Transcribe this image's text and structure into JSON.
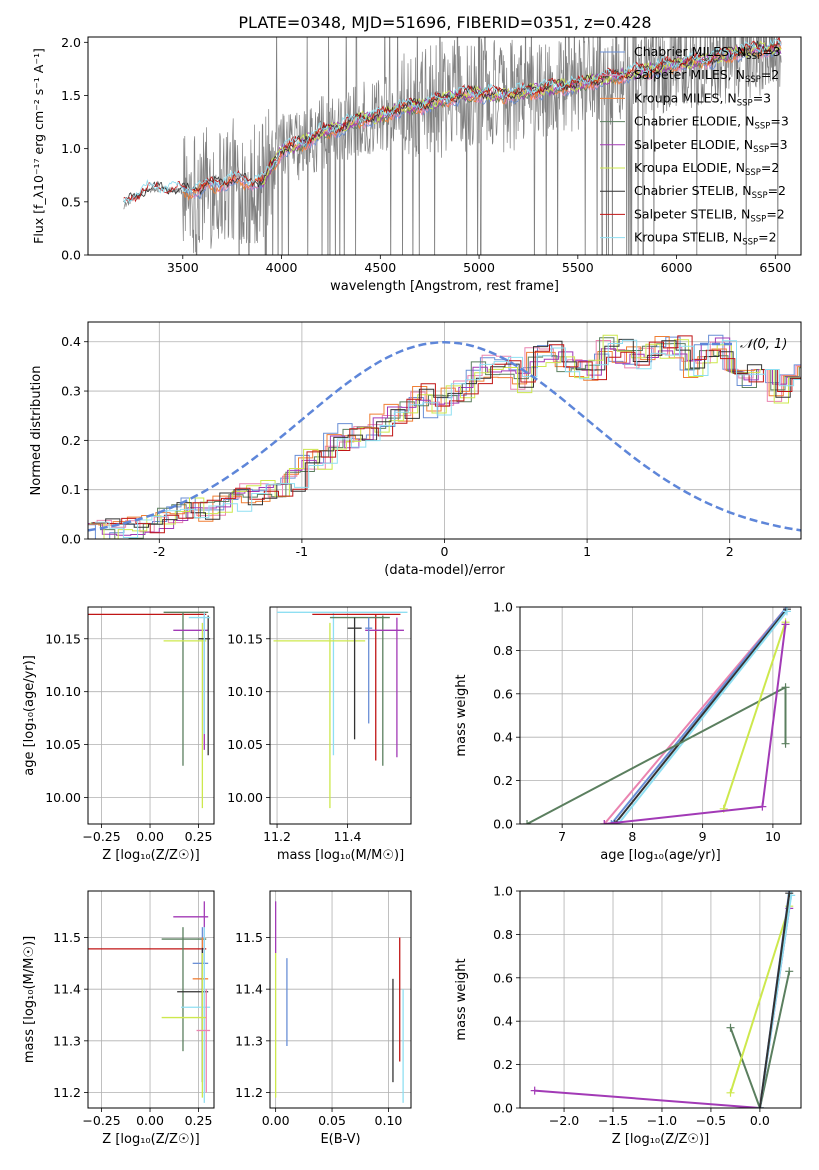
{
  "figure_title": "PLATE=0348, MJD=51696, FIBERID=0351, z=0.428",
  "model_colors": {
    "chabrier_miles": "#6a8fd6",
    "salpeter_miles": "#ea84b0",
    "kroupa_miles": "#f07f35",
    "chabrier_elodie": "#5b7f5f",
    "salpeter_elodie": "#a23ab6",
    "kroupa_elodie": "#cde84d",
    "chabrier_stelib": "#333333",
    "salpeter_stelib": "#c01515",
    "kroupa_stelib": "#8fdff2",
    "data": "#808080",
    "gaussian": "#5e86d9"
  },
  "chart_data": [
    {
      "id": "spectrum",
      "type": "line",
      "xlabel": "wavelength [Angstrom, rest frame]",
      "ylabel": "Flux [f_λ10⁻¹⁷ erg cm⁻² s⁻¹ A⁻¹]",
      "xlim": [
        3020,
        6630
      ],
      "ylim": [
        0,
        2.05
      ],
      "xticks": [
        3500,
        4000,
        4500,
        5000,
        5500,
        6000,
        6500
      ],
      "yticks": [
        0.0,
        0.5,
        1.0,
        1.5,
        2.0
      ],
      "grid": false,
      "legend_position": "top-right",
      "legend": [
        {
          "label": "Chabrier MILES, N",
          "sub": "SSP",
          "suffix": "=3",
          "color_key": "chabrier_miles"
        },
        {
          "label": "Salpeter MILES, N",
          "sub": "SSP",
          "suffix": "=2",
          "color_key": "salpeter_miles"
        },
        {
          "label": "Kroupa MILES, N",
          "sub": "SSP",
          "suffix": "=3",
          "color_key": "kroupa_miles"
        },
        {
          "label": "Chabrier ELODIE, N",
          "sub": "SSP",
          "suffix": "=3",
          "color_key": "chabrier_elodie"
        },
        {
          "label": "Salpeter ELODIE, N",
          "sub": "SSP",
          "suffix": "=3",
          "color_key": "salpeter_elodie"
        },
        {
          "label": "Kroupa ELODIE, N",
          "sub": "SSP",
          "suffix": "=2",
          "color_key": "kroupa_elodie"
        },
        {
          "label": "Chabrier STELIB, N",
          "sub": "SSP",
          "suffix": "=2",
          "color_key": "chabrier_stelib"
        },
        {
          "label": "Salpeter STELIB, N",
          "sub": "SSP",
          "suffix": "=2",
          "color_key": "salpeter_stelib"
        },
        {
          "label": "Kroupa STELIB, N",
          "sub": "SSP",
          "suffix": "=2",
          "color_key": "kroupa_stelib"
        }
      ],
      "continuum": [
        [
          3200,
          0.46
        ],
        [
          3300,
          0.6
        ],
        [
          3400,
          0.62
        ],
        [
          3500,
          0.6
        ],
        [
          3600,
          0.63
        ],
        [
          3700,
          0.68
        ],
        [
          3800,
          0.7
        ],
        [
          3900,
          0.68
        ],
        [
          4000,
          0.98
        ],
        [
          4100,
          1.05
        ],
        [
          4200,
          1.15
        ],
        [
          4300,
          1.2
        ],
        [
          4400,
          1.28
        ],
        [
          4500,
          1.3
        ],
        [
          4600,
          1.38
        ],
        [
          4700,
          1.4
        ],
        [
          4800,
          1.45
        ],
        [
          4900,
          1.5
        ],
        [
          5000,
          1.52
        ],
        [
          5100,
          1.5
        ],
        [
          5200,
          1.52
        ],
        [
          5300,
          1.55
        ],
        [
          5400,
          1.58
        ],
        [
          5500,
          1.6
        ],
        [
          5600,
          1.65
        ],
        [
          5700,
          1.68
        ],
        [
          5800,
          1.72
        ],
        [
          5900,
          1.75
        ],
        [
          6000,
          1.8
        ],
        [
          6100,
          1.82
        ],
        [
          6200,
          1.85
        ],
        [
          6300,
          1.9
        ],
        [
          6400,
          1.93
        ],
        [
          6500,
          1.95
        ]
      ]
    },
    {
      "id": "residuals",
      "type": "line",
      "xlabel": "(data-model)/error",
      "ylabel": "Normed distribution",
      "xlim": [
        -2.5,
        2.5
      ],
      "ylim": [
        0,
        0.44
      ],
      "xticks": [
        -2,
        -1,
        0,
        1,
        2
      ],
      "yticks": [
        0.0,
        0.1,
        0.2,
        0.3,
        0.4
      ],
      "grid": true,
      "legend_position": "top-right",
      "legend_label": "𝒩(0, 1)",
      "bin_width": 0.1,
      "histogram_base": [
        0.01,
        0.02,
        0.02,
        0.02,
        0.03,
        0.04,
        0.05,
        0.06,
        0.06,
        0.07,
        0.08,
        0.09,
        0.1,
        0.11,
        0.12,
        0.16,
        0.16,
        0.2,
        0.21,
        0.21,
        0.23,
        0.25,
        0.26,
        0.29,
        0.27,
        0.29,
        0.3,
        0.34,
        0.35,
        0.35,
        0.32,
        0.37,
        0.38,
        0.36,
        0.34,
        0.34,
        0.39,
        0.38,
        0.37,
        0.38,
        0.39,
        0.39,
        0.35,
        0.38,
        0.39,
        0.35,
        0.33,
        0.33,
        0.3,
        0.33,
        0.33,
        0.29,
        0.32,
        0.3,
        0.25,
        0.27,
        0.23,
        0.22,
        0.21,
        0.2,
        0.18,
        0.17,
        0.16,
        0.12,
        0.14,
        0.14,
        0.11,
        0.1,
        0.07,
        0.08,
        0.06,
        0.05,
        0.05,
        0.04,
        0.03,
        0.03,
        0.03,
        0.02,
        0.02,
        0.01,
        0.01,
        0.01,
        0.02,
        0.01,
        0.01,
        0.01,
        0.01,
        0.0,
        0.0,
        0.0
      ]
    },
    {
      "id": "age_vs_Z",
      "type": "scatter",
      "xlabel": "Z [log₁₀(Z/Z☉)]",
      "ylabel": "age  [log₁₀(age/yr)]",
      "xlim": [
        -0.32,
        0.33
      ],
      "ylim": [
        9.975,
        10.18
      ],
      "xticks": [
        -0.25,
        0.0,
        0.25
      ],
      "xticklabels": [
        "−0.25",
        "0.00",
        "0.25"
      ],
      "yticks": [
        10.0,
        10.05,
        10.1,
        10.15
      ],
      "yticklabels": [
        "10.00",
        "10.05",
        "10.10",
        "10.15"
      ],
      "grid": true,
      "points": [
        {
          "model": "salpeter_stelib",
          "x": 0.29,
          "y": 10.173,
          "xlo": -0.32,
          "xhi": 0.29,
          "ylo": 10.173,
          "yhi": 10.173
        },
        {
          "model": "chabrier_elodie",
          "x": 0.17,
          "y": 10.175,
          "xlo": 0.07,
          "xhi": 0.3,
          "ylo": 10.03,
          "yhi": 10.175
        },
        {
          "model": "salpeter_elodie",
          "x": 0.28,
          "y": 10.158,
          "xlo": 0.12,
          "xhi": 0.3,
          "ylo": 10.045,
          "yhi": 10.172
        },
        {
          "model": "kroupa_elodie",
          "x": 0.27,
          "y": 10.148,
          "xlo": 0.07,
          "xhi": 0.29,
          "ylo": 9.99,
          "yhi": 10.165
        },
        {
          "model": "chabrier_stelib",
          "x": 0.3,
          "y": 10.15,
          "xlo": 0.25,
          "xhi": 0.31,
          "ylo": 10.04,
          "yhi": 10.172
        },
        {
          "model": "kroupa_stelib",
          "x": 0.28,
          "y": 10.17,
          "xlo": 0.2,
          "xhi": 0.31,
          "ylo": 10.06,
          "yhi": 10.175
        }
      ]
    },
    {
      "id": "age_vs_mass",
      "type": "scatter",
      "xlabel": "mass [log₁₀(M/M☉)]",
      "ylabel": "",
      "xlim": [
        11.18,
        11.58
      ],
      "ylim": [
        9.975,
        10.18
      ],
      "xticks": [
        11.2,
        11.4
      ],
      "xticklabels": [
        "11.2",
        "11.4"
      ],
      "yticks": [
        10.0,
        10.05,
        10.1,
        10.15
      ],
      "yticklabels": [
        "10.00",
        "10.05",
        "10.10",
        "10.15"
      ],
      "grid": true,
      "points": [
        {
          "model": "kroupa_stelib",
          "x": 11.36,
          "y": 10.175,
          "xlo": 11.2,
          "xhi": 11.57,
          "ylo": 10.04,
          "yhi": 10.175
        },
        {
          "model": "salpeter_stelib",
          "x": 11.48,
          "y": 10.173,
          "xlo": 11.3,
          "xhi": 11.55,
          "ylo": 10.035,
          "yhi": 10.173
        },
        {
          "model": "chabrier_elodie",
          "x": 11.5,
          "y": 10.17,
          "xlo": 11.35,
          "xhi": 11.52,
          "ylo": 10.03,
          "yhi": 10.172
        },
        {
          "model": "salpeter_elodie",
          "x": 11.54,
          "y": 10.158,
          "xlo": 11.45,
          "xhi": 11.56,
          "ylo": 10.038,
          "yhi": 10.17
        },
        {
          "model": "kroupa_elodie",
          "x": 11.35,
          "y": 10.148,
          "xlo": 11.19,
          "xhi": 11.45,
          "ylo": 9.99,
          "yhi": 10.165
        },
        {
          "model": "chabrier_stelib",
          "x": 11.42,
          "y": 10.16,
          "xlo": 11.4,
          "xhi": 11.44,
          "ylo": 10.055,
          "yhi": 10.17
        },
        {
          "model": "chabrier_miles",
          "x": 11.46,
          "y": 10.16,
          "xlo": 11.45,
          "xhi": 11.47,
          "ylo": 10.07,
          "yhi": 10.17
        }
      ]
    },
    {
      "id": "weight_vs_age",
      "type": "line",
      "xlabel": "age  [log₁₀(age/yr)]",
      "ylabel": "mass weight",
      "xlim": [
        6.4,
        10.4
      ],
      "ylim": [
        0,
        1.0
      ],
      "xticks": [
        7,
        8,
        9,
        10
      ],
      "yticks": [
        0.0,
        0.2,
        0.4,
        0.6,
        0.8,
        1.0
      ],
      "yticklabels": [
        "0.0",
        "0.2",
        "0.4",
        "0.6",
        "0.8",
        "1.0"
      ],
      "grid": true,
      "series": [
        {
          "model": "salpeter_miles",
          "x": [
            7.6,
            10.2
          ],
          "y": [
            0.0,
            1.0
          ]
        },
        {
          "model": "chabrier_miles",
          "x": [
            7.7,
            10.2
          ],
          "y": [
            0.0,
            1.0
          ]
        },
        {
          "model": "chabrier_stelib",
          "x": [
            7.75,
            10.2
          ],
          "y": [
            0.0,
            0.99
          ]
        },
        {
          "model": "kroupa_stelib",
          "x": [
            7.8,
            10.2
          ],
          "y": [
            0.0,
            0.98
          ]
        },
        {
          "model": "chabrier_elodie",
          "x": [
            6.5,
            10.18,
            10.18
          ],
          "y": [
            0.0,
            0.63,
            0.37
          ]
        },
        {
          "model": "kroupa_elodie",
          "x": [
            9.3,
            10.18
          ],
          "y": [
            0.07,
            0.93
          ]
        },
        {
          "model": "salpeter_elodie",
          "x": [
            7.6,
            9.85,
            10.18
          ],
          "y": [
            0.0,
            0.08,
            0.92
          ]
        }
      ]
    },
    {
      "id": "mass_vs_Z",
      "type": "scatter",
      "xlabel": "Z [log₁₀(Z/Z☉)]",
      "ylabel": "mass [log₁₀(M/M☉)]",
      "xlim": [
        -0.32,
        0.33
      ],
      "ylim": [
        11.17,
        11.59
      ],
      "xticks": [
        -0.25,
        0.0,
        0.25
      ],
      "xticklabels": [
        "−0.25",
        "0.00",
        "0.25"
      ],
      "yticks": [
        11.2,
        11.3,
        11.4,
        11.5
      ],
      "yticklabels": [
        "11.2",
        "11.3",
        "11.4",
        "11.5"
      ],
      "grid": true,
      "points": [
        {
          "model": "salpeter_stelib",
          "x": 0.29,
          "y": 11.478,
          "xlo": -0.32,
          "xhi": 0.29,
          "ylo": 11.478,
          "yhi": 11.478
        },
        {
          "model": "salpeter_elodie",
          "x": 0.28,
          "y": 11.54,
          "xlo": 0.12,
          "xhi": 0.3,
          "ylo": 11.45,
          "yhi": 11.57
        },
        {
          "model": "chabrier_elodie",
          "x": 0.17,
          "y": 11.497,
          "xlo": 0.06,
          "xhi": 0.29,
          "ylo": 11.28,
          "yhi": 11.52
        },
        {
          "model": "chabrier_miles",
          "x": 0.27,
          "y": 11.45,
          "xlo": 0.22,
          "xhi": 0.3,
          "ylo": 11.34,
          "yhi": 11.52
        },
        {
          "model": "kroupa_miles",
          "x": 0.27,
          "y": 11.42,
          "xlo": 0.22,
          "xhi": 0.3,
          "ylo": 11.3,
          "yhi": 11.5
        },
        {
          "model": "chabrier_stelib",
          "x": 0.27,
          "y": 11.395,
          "xlo": 0.14,
          "xhi": 0.3,
          "ylo": 11.22,
          "yhi": 11.48
        },
        {
          "model": "kroupa_stelib",
          "x": 0.28,
          "y": 11.365,
          "xlo": 0.16,
          "xhi": 0.31,
          "ylo": 11.18,
          "yhi": 11.52
        },
        {
          "model": "kroupa_elodie",
          "x": 0.27,
          "y": 11.345,
          "xlo": 0.06,
          "xhi": 0.29,
          "ylo": 11.19,
          "yhi": 11.47
        },
        {
          "model": "salpeter_miles",
          "x": 0.29,
          "y": 11.32,
          "xlo": 0.24,
          "xhi": 0.31,
          "ylo": 11.2,
          "yhi": 11.4
        }
      ]
    },
    {
      "id": "mass_vs_ebv",
      "type": "scatter",
      "xlabel": "E(B-V)",
      "ylabel": "",
      "xlim": [
        -0.005,
        0.12
      ],
      "ylim": [
        11.17,
        11.59
      ],
      "xticks": [
        0.0,
        0.05,
        0.1
      ],
      "xticklabels": [
        "0.00",
        "0.05",
        "0.10"
      ],
      "yticks": [
        11.2,
        11.3,
        11.4,
        11.5
      ],
      "yticklabels": [
        "11.2",
        "11.3",
        "11.4",
        "11.5"
      ],
      "grid": true,
      "points": [
        {
          "model": "salpeter_elodie",
          "x": 0.0,
          "y": 11.54,
          "xlo": 0.0,
          "xhi": 0.0,
          "ylo": 11.47,
          "yhi": 11.57
        },
        {
          "model": "kroupa_elodie",
          "x": 0.0,
          "y": 11.35,
          "xlo": 0.0,
          "xhi": 0.0,
          "ylo": 11.19,
          "yhi": 11.47
        },
        {
          "model": "chabrier_miles",
          "x": 0.01,
          "y": 11.4,
          "xlo": 0.01,
          "xhi": 0.01,
          "ylo": 11.29,
          "yhi": 11.46
        },
        {
          "model": "chabrier_stelib",
          "x": 0.104,
          "y": 11.33,
          "xlo": 0.104,
          "xhi": 0.104,
          "ylo": 11.22,
          "yhi": 11.42
        },
        {
          "model": "salpeter_stelib",
          "x": 0.11,
          "y": 11.38,
          "xlo": 0.11,
          "xhi": 0.11,
          "ylo": 11.26,
          "yhi": 11.5
        },
        {
          "model": "kroupa_stelib",
          "x": 0.113,
          "y": 11.3,
          "xlo": 0.113,
          "xhi": 0.113,
          "ylo": 11.18,
          "yhi": 11.4
        }
      ]
    },
    {
      "id": "weight_vs_Z",
      "type": "line",
      "xlabel": "Z [log₁₀(Z/Z☉)]",
      "ylabel": "mass weight",
      "xlim": [
        -2.45,
        0.42
      ],
      "ylim": [
        0,
        1.0
      ],
      "xticks": [
        -2.0,
        -1.5,
        -1.0,
        -0.5,
        0.0
      ],
      "xticklabels": [
        "−2.0",
        "−1.5",
        "−1.0",
        "−0.5",
        "0.0"
      ],
      "yticks": [
        0.0,
        0.2,
        0.4,
        0.6,
        0.8,
        1.0
      ],
      "yticklabels": [
        "0.0",
        "0.2",
        "0.4",
        "0.6",
        "0.8",
        "1.0"
      ],
      "grid": true,
      "series": [
        {
          "model": "salpeter_elodie",
          "x": [
            -2.3,
            0.0,
            0.3
          ],
          "y": [
            0.08,
            0.0,
            0.92
          ]
        },
        {
          "model": "chabrier_elodie",
          "x": [
            -0.3,
            0.0,
            0.3
          ],
          "y": [
            0.37,
            0.0,
            0.63
          ]
        },
        {
          "model": "kroupa_elodie",
          "x": [
            -0.3,
            0.3
          ],
          "y": [
            0.07,
            0.93
          ]
        },
        {
          "model": "chabrier_miles",
          "x": [
            0.0,
            0.3
          ],
          "y": [
            0.0,
            1.0
          ]
        },
        {
          "model": "kroupa_stelib",
          "x": [
            0.0,
            0.32
          ],
          "y": [
            0.0,
            0.98
          ]
        },
        {
          "model": "chabrier_stelib",
          "x": [
            0.0,
            0.3
          ],
          "y": [
            0.0,
            0.99
          ]
        }
      ]
    }
  ]
}
